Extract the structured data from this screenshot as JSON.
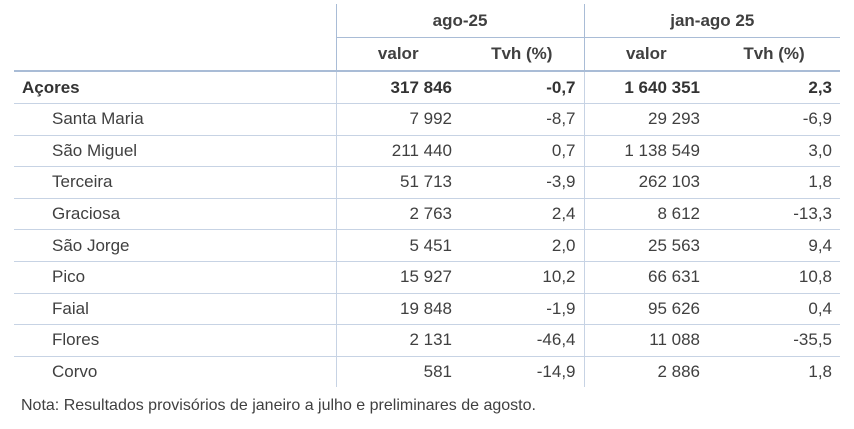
{
  "header": {
    "period1": "ago-25",
    "period2": "jan-ago 25",
    "col_value": "valor",
    "col_tvh": "Tvh (%)"
  },
  "total": {
    "name": "Açores",
    "v1": "317 846",
    "t1": "-0,7",
    "v2": "1 640 351",
    "t2": "2,3"
  },
  "rows": [
    {
      "name": "Santa Maria",
      "v1": "7 992",
      "t1": "-8,7",
      "v2": "29 293",
      "t2": "-6,9"
    },
    {
      "name": "São Miguel",
      "v1": "211 440",
      "t1": "0,7",
      "v2": "1 138 549",
      "t2": "3,0"
    },
    {
      "name": "Terceira",
      "v1": "51 713",
      "t1": "-3,9",
      "v2": "262 103",
      "t2": "1,8"
    },
    {
      "name": "Graciosa",
      "v1": "2 763",
      "t1": "2,4",
      "v2": "8 612",
      "t2": "-13,3"
    },
    {
      "name": "São Jorge",
      "v1": "5 451",
      "t1": "2,0",
      "v2": "25 563",
      "t2": "9,4"
    },
    {
      "name": "Pico",
      "v1": "15 927",
      "t1": "10,2",
      "v2": "66 631",
      "t2": "10,8"
    },
    {
      "name": "Faial",
      "v1": "19 848",
      "t1": "-1,9",
      "v2": "95 626",
      "t2": "0,4"
    },
    {
      "name": "Flores",
      "v1": "2 131",
      "t1": "-46,4",
      "v2": "11 088",
      "t2": "-35,5"
    },
    {
      "name": "Corvo",
      "v1": "581",
      "t1": "-14,9",
      "v2": "2 886",
      "t2": "1,8"
    }
  ],
  "note": "Nota: Resultados provisórios de janeiro a julho e preliminares de agosto."
}
